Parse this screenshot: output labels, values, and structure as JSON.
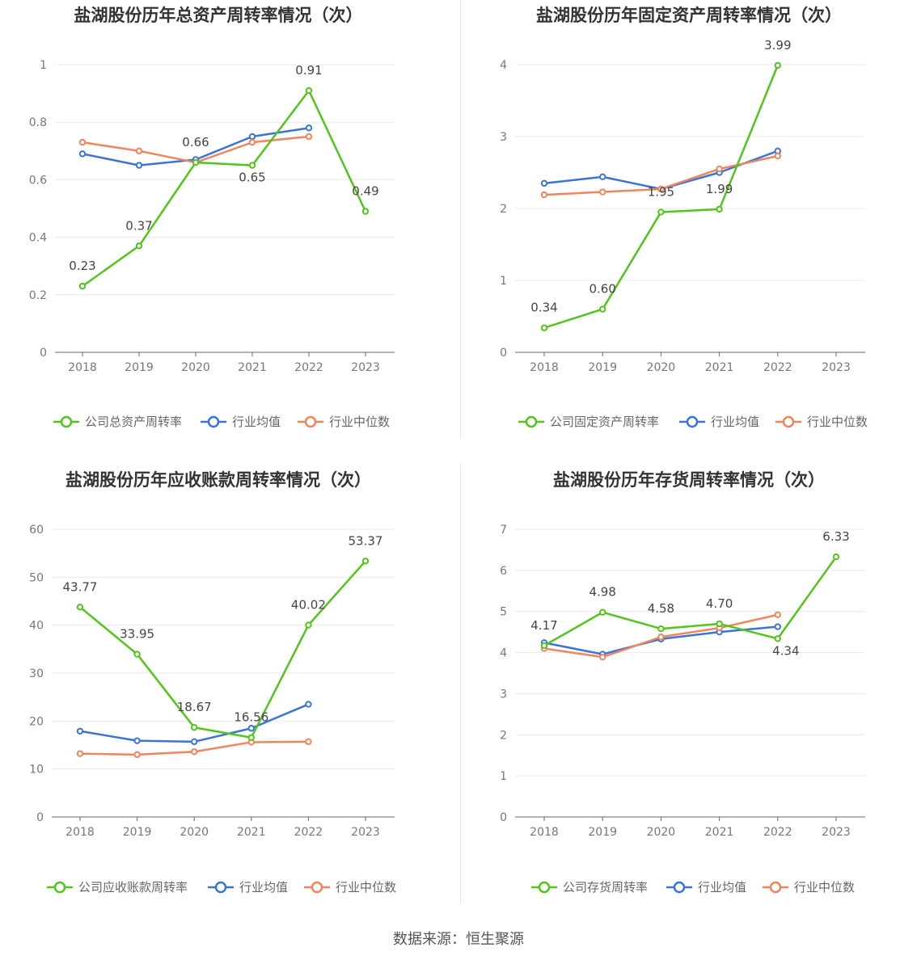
{
  "page": {
    "source": "数据来源：恒生聚源"
  },
  "chart_data": [
    {
      "type": "line",
      "title": "盐湖股份历年总资产周转率情况（次）",
      "categories": [
        "2018",
        "2019",
        "2020",
        "2021",
        "2022",
        "2023"
      ],
      "ylim": [
        0,
        1
      ],
      "yticks": [
        "0",
        "0.2",
        "0.4",
        "0.6",
        "0.8",
        "1"
      ],
      "yticks_values": [
        0,
        0.2,
        0.4,
        0.6,
        0.8,
        1
      ],
      "series": [
        {
          "name": "公司总资产周转率",
          "color": "#52c41a",
          "values": [
            0.23,
            0.37,
            0.66,
            0.65,
            0.91,
            0.49
          ],
          "labels": [
            "0.23",
            "0.37",
            "0.66",
            "0.65",
            "0.91",
            "0.49"
          ]
        },
        {
          "name": "行业均值",
          "color": "#3a74d8",
          "values": [
            0.69,
            0.65,
            0.67,
            0.75,
            0.78,
            null
          ]
        },
        {
          "name": "行业中位数",
          "color": "#f0845c",
          "values": [
            0.73,
            0.7,
            0.66,
            0.73,
            0.75,
            null
          ]
        }
      ],
      "legend_position": "bottom"
    },
    {
      "type": "line",
      "title": "盐湖股份历年固定资产周转率情况（次）",
      "categories": [
        "2018",
        "2019",
        "2020",
        "2021",
        "2022",
        "2023"
      ],
      "ylim": [
        0,
        4
      ],
      "yticks": [
        "0",
        "1",
        "2",
        "3",
        "4"
      ],
      "yticks_values": [
        0,
        1,
        2,
        3,
        4
      ],
      "series": [
        {
          "name": "公司固定资产周转率",
          "color": "#52c41a",
          "values": [
            0.34,
            0.6,
            1.95,
            1.99,
            3.99,
            null
          ],
          "labels": [
            "0.34",
            "0.60",
            "1.95",
            "1.99",
            "3.99",
            ""
          ]
        },
        {
          "name": "行业均值",
          "color": "#3a74d8",
          "values": [
            2.35,
            2.44,
            2.27,
            2.5,
            2.8,
            null
          ]
        },
        {
          "name": "行业中位数",
          "color": "#f0845c",
          "values": [
            2.19,
            2.23,
            2.27,
            2.55,
            2.73,
            null
          ]
        }
      ],
      "legend_position": "bottom"
    },
    {
      "type": "line",
      "title": "盐湖股份历年应收账款周转率情况（次）",
      "categories": [
        "2018",
        "2019",
        "2020",
        "2021",
        "2022",
        "2023"
      ],
      "ylim": [
        0,
        60
      ],
      "yticks": [
        "0",
        "10",
        "20",
        "30",
        "40",
        "50",
        "60"
      ],
      "yticks_values": [
        0,
        10,
        20,
        30,
        40,
        50,
        60
      ],
      "series": [
        {
          "name": "公司应收账款周转率",
          "color": "#52c41a",
          "values": [
            43.77,
            33.95,
            18.67,
            16.56,
            40.02,
            53.37
          ],
          "labels": [
            "43.77",
            "33.95",
            "18.67",
            "16.56",
            "40.02",
            "53.37"
          ]
        },
        {
          "name": "行业均值",
          "color": "#3a74d8",
          "values": [
            17.9,
            15.9,
            15.7,
            18.5,
            23.5,
            null
          ]
        },
        {
          "name": "行业中位数",
          "color": "#f0845c",
          "values": [
            13.2,
            13.0,
            13.6,
            15.6,
            15.7,
            null
          ]
        }
      ],
      "legend_position": "bottom"
    },
    {
      "type": "line",
      "title": "盐湖股份历年存货周转率情况（次）",
      "categories": [
        "2018",
        "2019",
        "2020",
        "2021",
        "2022",
        "2023"
      ],
      "ylim": [
        0,
        7
      ],
      "yticks": [
        "0",
        "1",
        "2",
        "3",
        "4",
        "5",
        "6",
        "7"
      ],
      "yticks_values": [
        0,
        1,
        2,
        3,
        4,
        5,
        6,
        7
      ],
      "series": [
        {
          "name": "公司存货周转率",
          "color": "#52c41a",
          "values": [
            4.17,
            4.98,
            4.58,
            4.7,
            4.34,
            6.33
          ],
          "labels": [
            "4.17",
            "4.98",
            "4.58",
            "4.70",
            "4.34",
            "6.33"
          ]
        },
        {
          "name": "行业均值",
          "color": "#3a74d8",
          "values": [
            4.24,
            3.96,
            4.33,
            4.5,
            4.63,
            null
          ]
        },
        {
          "name": "行业中位数",
          "color": "#f0845c",
          "values": [
            4.1,
            3.89,
            4.38,
            4.6,
            4.92,
            null
          ]
        }
      ],
      "legend_position": "bottom"
    }
  ]
}
